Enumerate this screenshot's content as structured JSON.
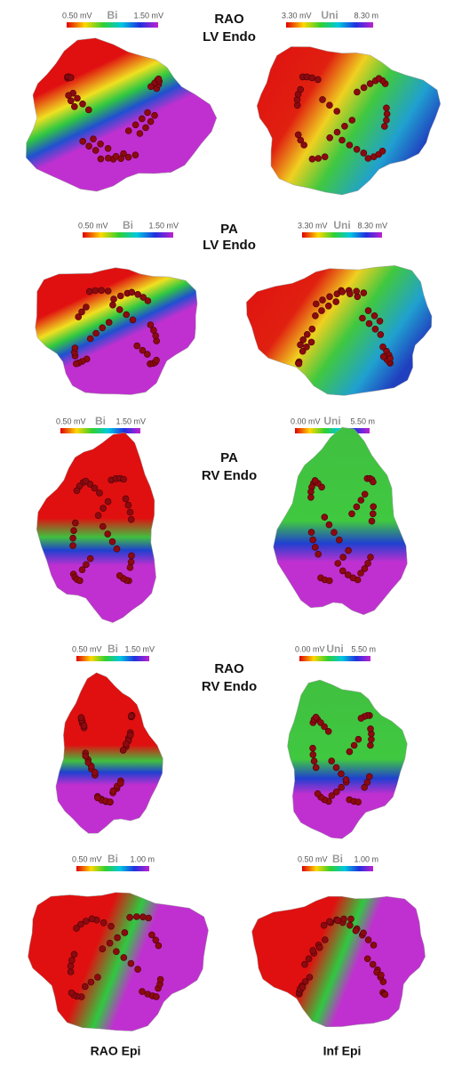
{
  "rows": [
    {
      "view": [
        "RAO",
        "LV Endo"
      ],
      "maps": [
        {
          "scale": {
            "min": "0.50 mV",
            "label": "Bi",
            "max": "1.50 mV"
          }
        },
        {
          "scale": {
            "min": "3.30 mV",
            "label": "Uni",
            "max": "8.30 m"
          }
        }
      ]
    },
    {
      "view": [
        "PA",
        "LV Endo"
      ],
      "maps": [
        {
          "scale": {
            "min": "0.50 mV",
            "label": "Bi",
            "max": "1.50 mV"
          }
        },
        {
          "scale": {
            "min": "3.30 mV",
            "label": "Uni",
            "max": "8.30 mV"
          }
        }
      ]
    },
    {
      "view": [
        "PA",
        "RV Endo"
      ],
      "maps": [
        {
          "scale": {
            "min": "0.50 mV",
            "label": "Bi",
            "max": "1.50 mV"
          }
        },
        {
          "scale": {
            "min": "0.00 mV",
            "label": "Uni",
            "max": "5.50 m"
          }
        }
      ]
    },
    {
      "view": [
        "RAO",
        "RV Endo"
      ],
      "maps": [
        {
          "scale": {
            "min": "0.50 mV",
            "label": "Bi",
            "max": "1.50 mV"
          }
        },
        {
          "scale": {
            "min": "0.00 mV",
            "label": "Uni",
            "max": "5.50 m"
          }
        }
      ]
    },
    {
      "maps": [
        {
          "scale": {
            "min": "0.50 mV",
            "label": "Bi",
            "max": "1.00 m"
          },
          "caption": "RAO Epi"
        },
        {
          "scale": {
            "min": "0.50 mV",
            "label": "Bi",
            "max": "1.00 m"
          },
          "caption": "Inf Epi"
        }
      ]
    }
  ]
}
